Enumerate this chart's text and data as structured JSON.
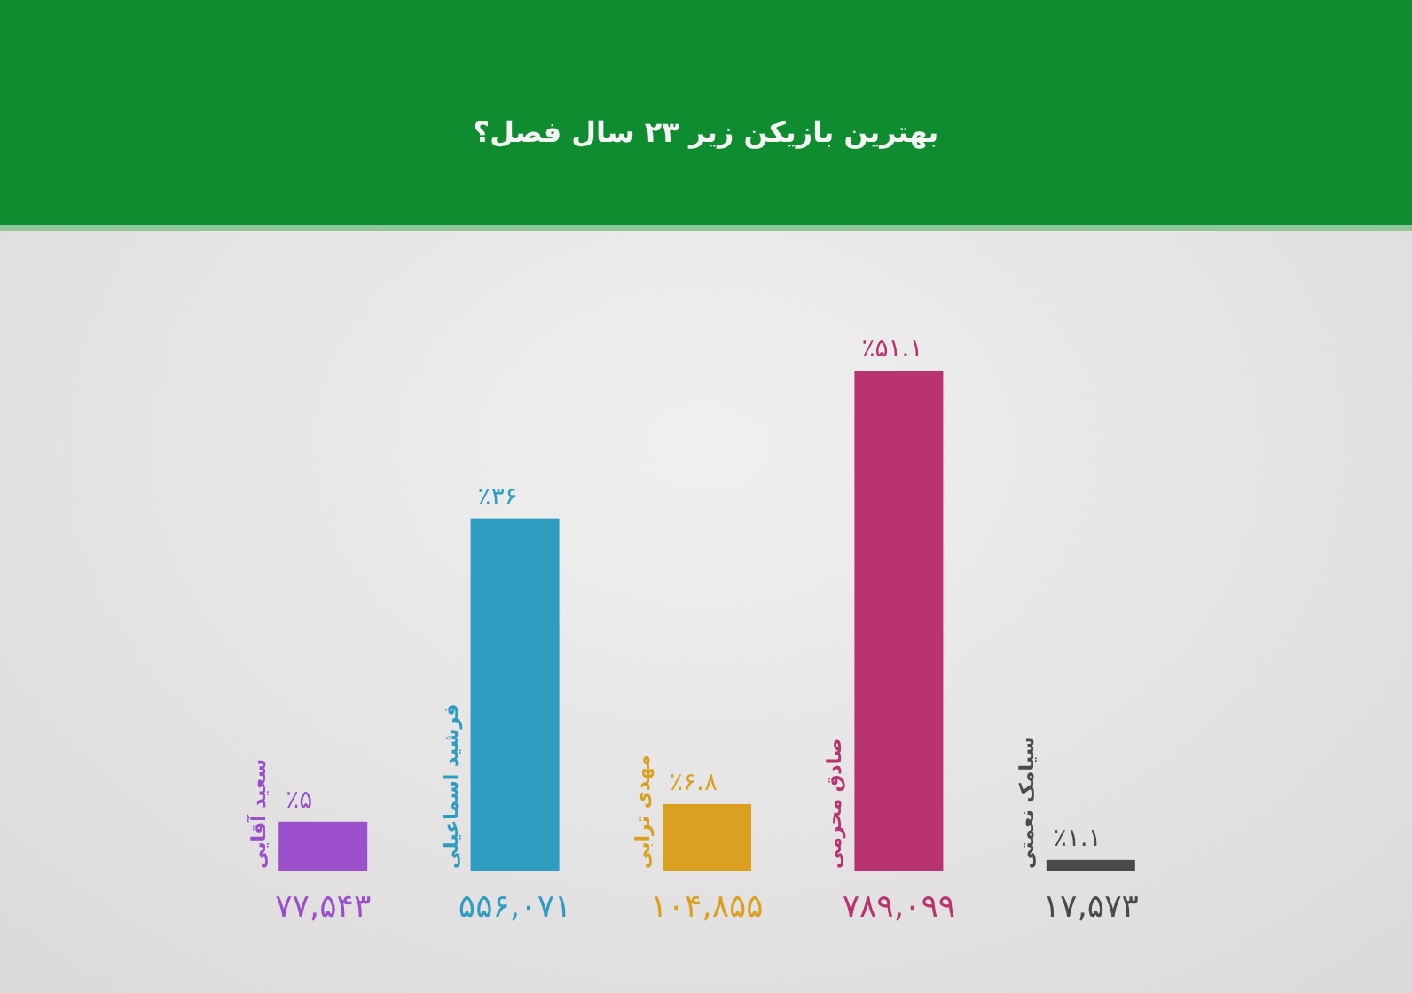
{
  "chart_data": {
    "type": "bar",
    "title": "بهترین بازیکن زیر ۲۳ سال فصل؟",
    "categories": [
      "سعید آقایی",
      "فرشید اسماعیلی",
      "مهدی ترابی",
      "صادق محرمی",
      "سیامک نعمتی"
    ],
    "values": [
      5,
      36,
      6.8,
      51.1,
      1.1
    ],
    "colors": [
      "#9b4fca",
      "#2f9cc2",
      "#dba020",
      "#b8336f",
      "#4a4a4a"
    ],
    "value_labels": [
      "٪۵",
      "٪۳۶",
      "٪۶.۸",
      "٪۵۱.۱",
      "٪۱.۱"
    ],
    "annotations": [
      "۷۷,۵۴۳",
      "۵۵۶,۰۷۱",
      "۱۰۴,۸۵۵",
      "۷۸۹,۰۹۹",
      "۱۷,۵۷۳"
    ]
  }
}
